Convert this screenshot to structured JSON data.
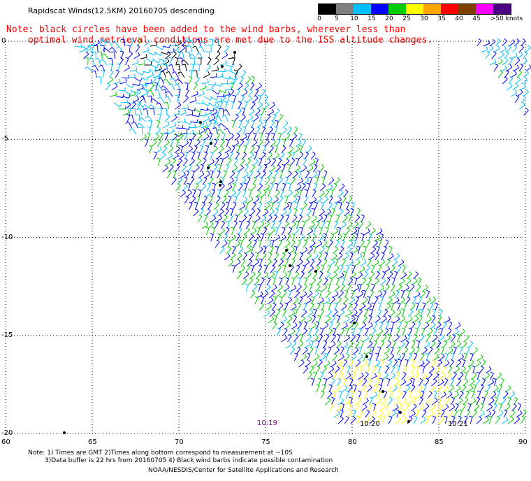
{
  "title": "Rapidscat Winds(12.5KM) 20160705 descending",
  "notes": {
    "line1": "Note: black circles have been added to the wind barbs, wherever less than",
    "line2": "optimal wind retrieval conditions are met due to the ISS altitude changes."
  },
  "legend": {
    "labels": [
      "0",
      "5",
      "10",
      "15",
      "20",
      "25",
      "30",
      "35",
      "40",
      "45",
      ">50 knots"
    ],
    "colors": [
      "#000000",
      "#7f7f7f",
      "#00bfff",
      "#0000ff",
      "#00cc00",
      "#ffff00",
      "#ffa500",
      "#ff0000",
      "#7f3f00",
      "#ff00ff",
      "#4b0082"
    ]
  },
  "axes": {
    "lat_labels": [
      "0",
      "-5",
      "-10",
      "-15",
      "-20"
    ],
    "lon_labels": [
      "60",
      "65",
      "70",
      "75",
      "80",
      "85",
      "90"
    ],
    "lat_range": [
      -20,
      0
    ],
    "lon_range": [
      60,
      90
    ]
  },
  "times": [
    "10:19",
    "10:20",
    "10:21"
  ],
  "footer": {
    "line1": "Note: 1) Times are GMT 2)Times along bottom correspond to measurement at ~10S",
    "line2": "3)Data buffer is 22 hrs from 20160705 4) Black wind barbs indicate possible contamination",
    "line3": "NOAA/NESDIS/Center for Satellite Applications and Research"
  }
}
